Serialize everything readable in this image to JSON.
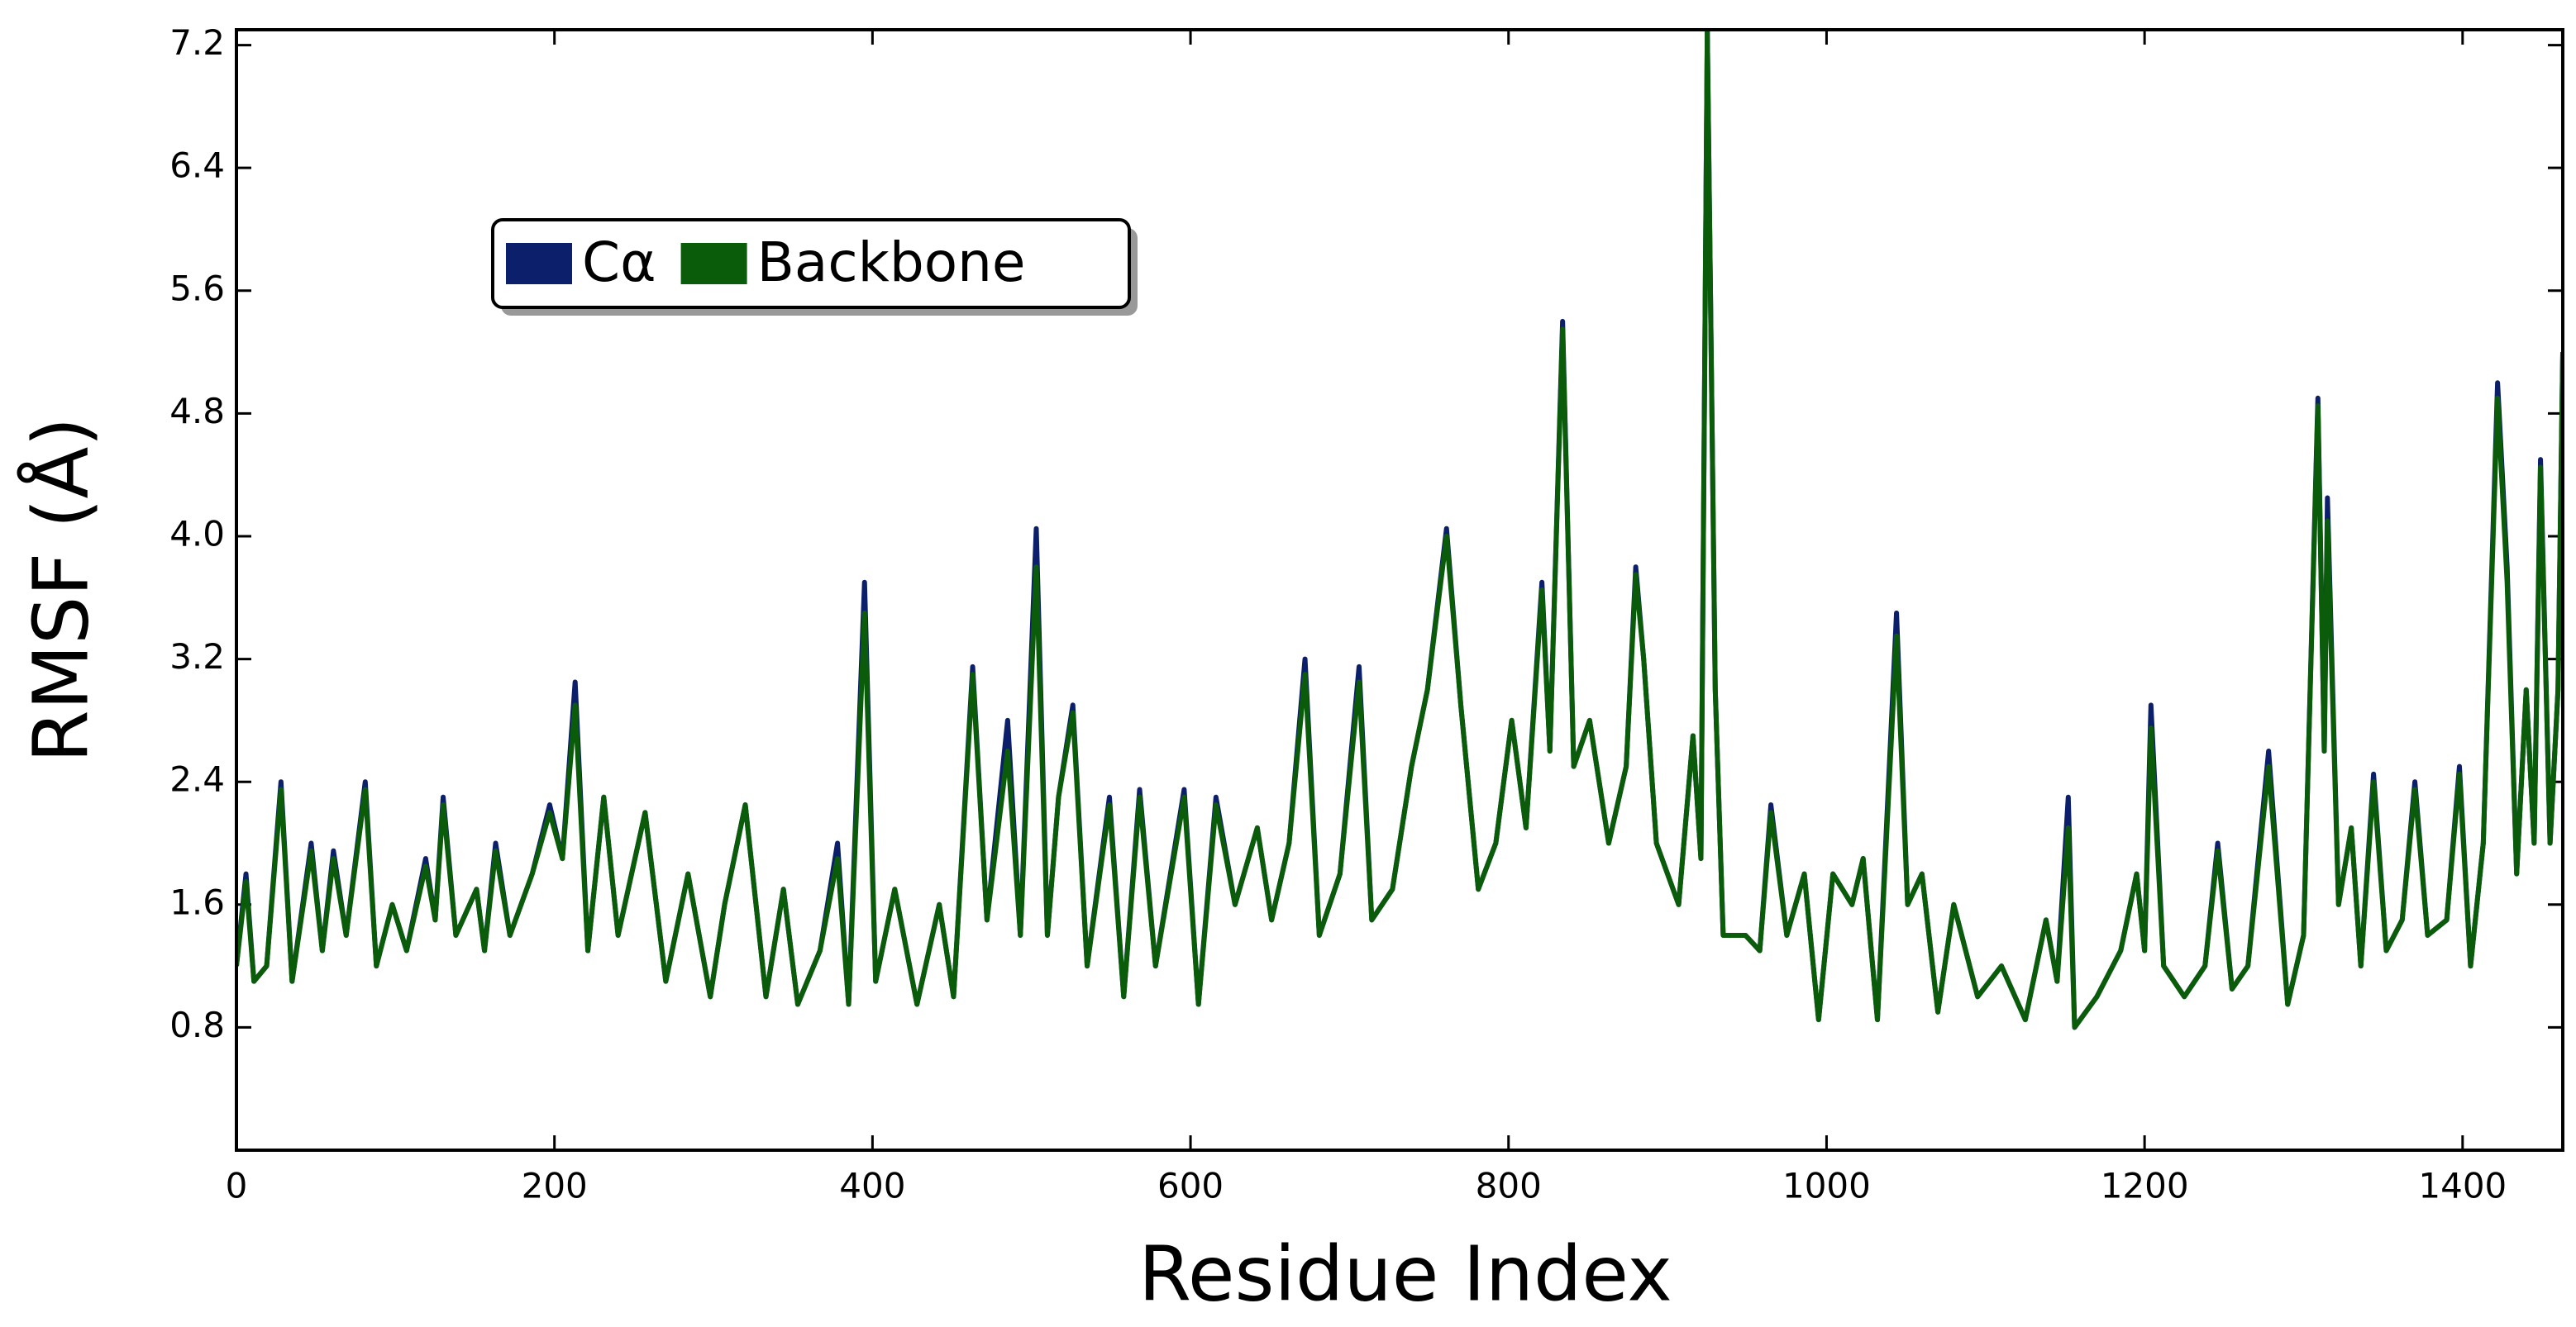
{
  "chart_data": {
    "type": "line",
    "x_label": "Residue Index",
    "y_label": "RMSF (Å)",
    "x": [
      0,
      6,
      11,
      19,
      28,
      35,
      47,
      54,
      61,
      69,
      81,
      88,
      98,
      107,
      119,
      125,
      130,
      138,
      151,
      156,
      163,
      172,
      186,
      197,
      205,
      213,
      221,
      231,
      240,
      257,
      270,
      284,
      298,
      307,
      320,
      333,
      344,
      353,
      367,
      378,
      385,
      395,
      402,
      414,
      428,
      442,
      451,
      463,
      472,
      485,
      493,
      503,
      510,
      517,
      526,
      535,
      549,
      558,
      568,
      578,
      596,
      605,
      616,
      628,
      642,
      651,
      662,
      672,
      681,
      694,
      706,
      714,
      727,
      739,
      749,
      761,
      770,
      781,
      792,
      802,
      811,
      821,
      826,
      834,
      841,
      851,
      863,
      874,
      880,
      885,
      893,
      907,
      916,
      921,
      925,
      930,
      935,
      949,
      958,
      965,
      975,
      986,
      995,
      1004,
      1016,
      1023,
      1032,
      1044,
      1051,
      1060,
      1070,
      1080,
      1095,
      1110,
      1125,
      1138,
      1145,
      1152,
      1156,
      1170,
      1185,
      1195,
      1200,
      1204,
      1212,
      1225,
      1238,
      1246,
      1255,
      1265,
      1278,
      1290,
      1300,
      1309,
      1313,
      1315,
      1322,
      1330,
      1336,
      1344,
      1352,
      1362,
      1370,
      1378,
      1390,
      1398,
      1405,
      1413,
      1422,
      1428,
      1434,
      1440,
      1445,
      1449,
      1455,
      1460,
      1463
    ],
    "series": [
      {
        "name": "Cα",
        "color": "#0b1f6b",
        "values": [
          1.2,
          1.8,
          1.1,
          1.2,
          2.4,
          1.1,
          2.0,
          1.3,
          1.95,
          1.4,
          2.4,
          1.2,
          1.6,
          1.3,
          1.9,
          1.5,
          2.3,
          1.4,
          1.7,
          1.3,
          2.0,
          1.4,
          1.8,
          2.25,
          1.9,
          3.05,
          1.3,
          2.3,
          1.4,
          2.2,
          1.1,
          1.8,
          1.0,
          1.6,
          2.25,
          1.0,
          1.7,
          0.95,
          1.3,
          2.0,
          0.95,
          3.7,
          1.1,
          1.7,
          0.95,
          1.6,
          1.0,
          3.15,
          1.5,
          2.8,
          1.4,
          4.05,
          1.4,
          2.3,
          2.9,
          1.2,
          2.3,
          1.0,
          2.35,
          1.2,
          2.35,
          0.95,
          2.3,
          1.6,
          2.1,
          1.5,
          2.0,
          3.2,
          1.4,
          1.8,
          3.15,
          1.5,
          1.7,
          2.5,
          3.0,
          4.05,
          2.9,
          1.7,
          2.0,
          2.8,
          2.1,
          3.7,
          2.6,
          5.4,
          2.5,
          2.8,
          2.0,
          2.5,
          3.8,
          3.2,
          2.0,
          1.6,
          2.7,
          1.9,
          7.3,
          3.0,
          1.4,
          1.4,
          1.3,
          2.25,
          1.4,
          1.8,
          0.85,
          1.8,
          1.6,
          1.9,
          0.85,
          3.5,
          1.6,
          1.8,
          0.9,
          1.6,
          1.0,
          1.2,
          0.85,
          1.5,
          1.1,
          2.3,
          0.8,
          1.0,
          1.3,
          1.8,
          1.3,
          2.9,
          1.2,
          1.0,
          1.2,
          2.0,
          1.05,
          1.2,
          2.6,
          0.95,
          1.4,
          4.9,
          2.6,
          4.25,
          1.6,
          2.1,
          1.2,
          2.45,
          1.3,
          1.5,
          2.4,
          1.4,
          1.5,
          2.5,
          1.2,
          2.0,
          5.0,
          3.8,
          1.8,
          3.0,
          2.0,
          4.5,
          2.0,
          3.0,
          5.2
        ]
      },
      {
        "name": "Backbone",
        "color": "#0a5c0a",
        "values": [
          1.2,
          1.75,
          1.1,
          1.2,
          2.35,
          1.1,
          1.95,
          1.3,
          1.9,
          1.4,
          2.35,
          1.2,
          1.6,
          1.3,
          1.85,
          1.5,
          2.25,
          1.4,
          1.7,
          1.3,
          1.95,
          1.4,
          1.8,
          2.2,
          1.9,
          2.9,
          1.3,
          2.3,
          1.4,
          2.2,
          1.1,
          1.8,
          1.0,
          1.6,
          2.25,
          1.0,
          1.7,
          0.95,
          1.3,
          1.9,
          0.95,
          3.5,
          1.1,
          1.7,
          0.95,
          1.6,
          1.0,
          3.1,
          1.5,
          2.6,
          1.4,
          3.8,
          1.4,
          2.3,
          2.85,
          1.2,
          2.25,
          1.0,
          2.3,
          1.2,
          2.3,
          0.95,
          2.25,
          1.6,
          2.1,
          1.5,
          2.0,
          3.1,
          1.4,
          1.8,
          3.05,
          1.5,
          1.7,
          2.5,
          3.0,
          4.0,
          2.9,
          1.7,
          2.0,
          2.8,
          2.1,
          3.65,
          2.6,
          5.35,
          2.5,
          2.8,
          2.0,
          2.5,
          3.75,
          3.2,
          2.0,
          1.6,
          2.7,
          1.9,
          7.3,
          3.0,
          1.4,
          1.4,
          1.3,
          2.2,
          1.4,
          1.8,
          0.85,
          1.8,
          1.6,
          1.9,
          0.85,
          3.35,
          1.6,
          1.8,
          0.9,
          1.6,
          1.0,
          1.2,
          0.85,
          1.5,
          1.1,
          2.1,
          0.8,
          1.0,
          1.3,
          1.8,
          1.3,
          2.75,
          1.2,
          1.0,
          1.2,
          1.95,
          1.05,
          1.2,
          2.5,
          0.95,
          1.4,
          4.85,
          2.6,
          4.1,
          1.6,
          2.1,
          1.2,
          2.4,
          1.3,
          1.5,
          2.35,
          1.4,
          1.5,
          2.45,
          1.2,
          2.0,
          4.9,
          3.7,
          1.8,
          3.0,
          2.0,
          4.45,
          2.0,
          3.0,
          5.2
        ]
      }
    ],
    "xlim": [
      0,
      1463
    ],
    "ylim": [
      0,
      7.3
    ],
    "xticks": [
      0,
      200,
      400,
      600,
      800,
      1000,
      1200,
      1400
    ],
    "yticks": [
      0.8,
      1.6,
      2.4,
      3.2,
      {
        "value": 4,
        "label": "4.0"
      },
      4.8,
      5.6,
      6.4,
      7.2
    ],
    "grid": false,
    "legend": "upper left"
  }
}
